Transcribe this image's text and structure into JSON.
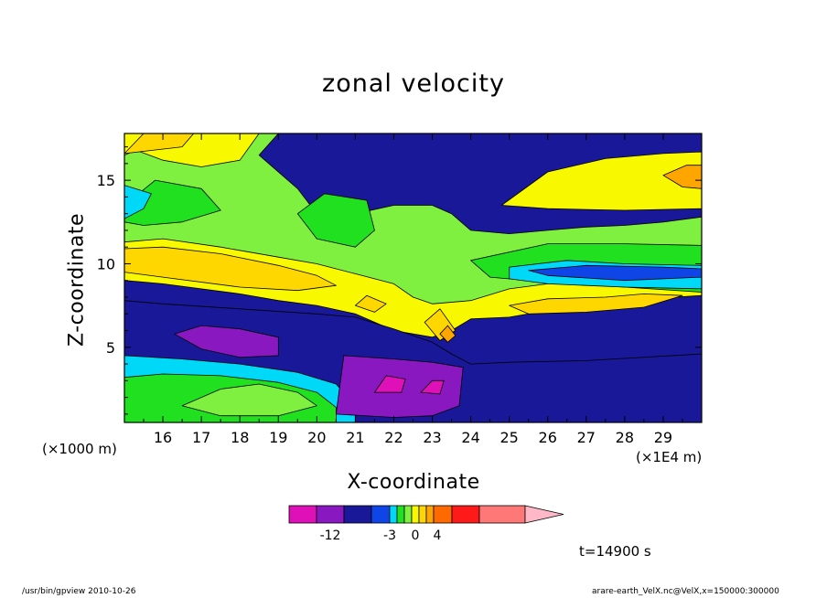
{
  "chart_data": {
    "type": "heatmap",
    "title": "zonal velocity",
    "xlabel": "X-coordinate",
    "ylabel": "Z-coordinate",
    "x_unit_left": "(×1000 m)",
    "x_unit_right": "(×1E4 m)",
    "xlim": [
      15.0,
      30.0
    ],
    "ylim": [
      0.5,
      17.8
    ],
    "x_ticks": [
      16,
      17,
      18,
      19,
      20,
      21,
      22,
      23,
      24,
      25,
      26,
      27,
      28,
      29
    ],
    "y_ticks": [
      5,
      10,
      15
    ],
    "time_label": "t=14900 s",
    "colorbar": {
      "colors": [
        "#e010b8",
        "#8a18c0",
        "#181898",
        "#0f45e6",
        "#00d8f8",
        "#20e020",
        "#80f040",
        "#f8f800",
        "#ffd700",
        "#ffa500",
        "#ff6a00",
        "#ff1a1a",
        "#ff7878"
      ],
      "extend_color": "#ffb8c8",
      "labels": [
        "-12",
        "-3",
        "0",
        "4"
      ]
    },
    "bands_note": "filled contour regions of zonal velocity",
    "regions": [
      {
        "level": 2,
        "pts": [
          [
            15,
            0.5
          ],
          [
            30,
            0.5
          ],
          [
            30,
            17.8
          ],
          [
            15,
            17.8
          ]
        ]
      },
      {
        "level": 6,
        "pts": [
          [
            15,
            17.8
          ],
          [
            19,
            17.8
          ],
          [
            18.5,
            16.5
          ],
          [
            19.5,
            14.5
          ],
          [
            20,
            13
          ],
          [
            21,
            13
          ],
          [
            22,
            13.5
          ],
          [
            23,
            13.5
          ],
          [
            23.5,
            13
          ],
          [
            24,
            12
          ],
          [
            25,
            11.8
          ],
          [
            26,
            12
          ],
          [
            27,
            12.2
          ],
          [
            28,
            12.3
          ],
          [
            29,
            12.5
          ],
          [
            30,
            12.8
          ],
          [
            30,
            8.6
          ],
          [
            27,
            8.2
          ],
          [
            25,
            7.6
          ],
          [
            24,
            7.3
          ],
          [
            23,
            7.5
          ],
          [
            22,
            8.2
          ],
          [
            21,
            8.6
          ],
          [
            20,
            8.7
          ],
          [
            19,
            9.1
          ],
          [
            18,
            9.5
          ],
          [
            17,
            10
          ],
          [
            16,
            10.3
          ],
          [
            15,
            10.5
          ]
        ]
      },
      {
        "level": 7,
        "pts": [
          [
            15,
            17.8
          ],
          [
            18.5,
            17.8
          ],
          [
            18,
            16.2
          ],
          [
            17,
            15.8
          ],
          [
            16,
            16.2
          ],
          [
            15.3,
            16.8
          ],
          [
            15,
            16.5
          ]
        ]
      },
      {
        "level": 7,
        "pts": [
          [
            24.8,
            13.5
          ],
          [
            26,
            15.5
          ],
          [
            27.5,
            16.3
          ],
          [
            29,
            16.6
          ],
          [
            30,
            16.7
          ],
          [
            30,
            13.3
          ],
          [
            28,
            13.2
          ],
          [
            26,
            13.3
          ]
        ]
      },
      {
        "level": 7,
        "pts": [
          [
            15,
            11.3
          ],
          [
            16,
            11.5
          ],
          [
            17.5,
            11
          ],
          [
            19,
            10.4
          ],
          [
            20,
            10
          ],
          [
            21,
            9.4
          ],
          [
            22,
            8.8
          ],
          [
            22.5,
            8
          ],
          [
            23,
            7.6
          ],
          [
            24,
            7.8
          ],
          [
            25,
            8.5
          ],
          [
            27,
            9.1
          ],
          [
            29,
            9.3
          ],
          [
            30,
            9.4
          ],
          [
            30,
            8.1
          ],
          [
            28,
            7.8
          ],
          [
            26,
            7.2
          ],
          [
            25,
            6.8
          ],
          [
            24,
            6.7
          ],
          [
            23.5,
            6
          ],
          [
            23,
            5.6
          ],
          [
            22,
            6
          ],
          [
            21,
            7
          ],
          [
            20,
            7.5
          ],
          [
            19,
            7.8
          ],
          [
            18,
            8.2
          ],
          [
            17,
            8.5
          ],
          [
            16,
            8.8
          ],
          [
            15,
            9
          ]
        ]
      },
      {
        "level": 8,
        "pts": [
          [
            15,
            10.9
          ],
          [
            16,
            11
          ],
          [
            17.5,
            10.6
          ],
          [
            19,
            9.9
          ],
          [
            20,
            9.3
          ],
          [
            20.5,
            8.7
          ],
          [
            19.5,
            8.4
          ],
          [
            18,
            8.6
          ],
          [
            16,
            9.2
          ],
          [
            15,
            9.5
          ]
        ]
      },
      {
        "level": 8,
        "pts": [
          [
            25,
            7.5
          ],
          [
            26,
            7.9
          ],
          [
            27.5,
            8
          ],
          [
            28.5,
            8.2
          ],
          [
            29.5,
            8.1
          ],
          [
            28.5,
            7.4
          ],
          [
            27,
            7.1
          ],
          [
            25.5,
            7
          ]
        ]
      },
      {
        "level": 5,
        "pts": [
          [
            19.5,
            13
          ],
          [
            20.2,
            14.2
          ],
          [
            21.3,
            13.8
          ],
          [
            21.5,
            12
          ],
          [
            21,
            11
          ],
          [
            20,
            11.5
          ]
        ]
      },
      {
        "level": 5,
        "pts": [
          [
            15,
            13.5
          ],
          [
            15.8,
            15
          ],
          [
            17,
            14.5
          ],
          [
            17.5,
            13.2
          ],
          [
            16.5,
            12.5
          ],
          [
            15.5,
            12.3
          ],
          [
            15,
            12.5
          ]
        ]
      },
      {
        "level": 4,
        "pts": [
          [
            15,
            12.7
          ],
          [
            15.5,
            13.3
          ],
          [
            15.7,
            14.2
          ],
          [
            15,
            14.7
          ]
        ]
      },
      {
        "level": 5,
        "pts": [
          [
            24,
            10.2
          ],
          [
            26,
            11.2
          ],
          [
            28,
            11.2
          ],
          [
            30,
            11.1
          ],
          [
            30,
            8.3
          ],
          [
            28,
            8.6
          ],
          [
            26,
            8.9
          ],
          [
            24.5,
            9.2
          ]
        ]
      },
      {
        "level": 4,
        "pts": [
          [
            25,
            9.8
          ],
          [
            26.5,
            10.2
          ],
          [
            28,
            10
          ],
          [
            30,
            9.9
          ],
          [
            30,
            8.5
          ],
          [
            28,
            8.6
          ],
          [
            26,
            8.8
          ],
          [
            25,
            9.1
          ]
        ]
      },
      {
        "level": 3,
        "pts": [
          [
            25.5,
            9.6
          ],
          [
            27,
            9.9
          ],
          [
            29,
            9.8
          ],
          [
            30,
            9.7
          ],
          [
            30,
            9.2
          ],
          [
            28,
            9
          ],
          [
            26,
            9.3
          ]
        ]
      },
      {
        "level": 2,
        "pts": [
          [
            15,
            0.5
          ],
          [
            15,
            7.8
          ],
          [
            16,
            7.6
          ],
          [
            18,
            7.3
          ],
          [
            20,
            7
          ],
          [
            21,
            6.8
          ],
          [
            22,
            6.1
          ],
          [
            23,
            5.3
          ],
          [
            23.5,
            4.6
          ],
          [
            24,
            4
          ],
          [
            25,
            4.1
          ],
          [
            27,
            4.2
          ],
          [
            30,
            4.6
          ],
          [
            30,
            0.5
          ]
        ]
      },
      {
        "level": 4,
        "pts": [
          [
            15,
            0.5
          ],
          [
            15,
            4.5
          ],
          [
            16.5,
            4.3
          ],
          [
            18,
            4
          ],
          [
            19.5,
            3.5
          ],
          [
            20.5,
            2.8
          ],
          [
            21,
            1.5
          ],
          [
            21,
            0.5
          ]
        ]
      },
      {
        "level": 5,
        "pts": [
          [
            15,
            0.5
          ],
          [
            15,
            3.2
          ],
          [
            16,
            3.4
          ],
          [
            17.5,
            3.3
          ],
          [
            19,
            2.9
          ],
          [
            20,
            2.3
          ],
          [
            20.5,
            1.4
          ],
          [
            20.5,
            0.5
          ]
        ]
      },
      {
        "level": 6,
        "pts": [
          [
            16.5,
            1.5
          ],
          [
            17.5,
            2.5
          ],
          [
            18.5,
            2.8
          ],
          [
            19.5,
            2.3
          ],
          [
            20,
            1.5
          ],
          [
            19,
            0.9
          ],
          [
            17.5,
            0.9
          ]
        ]
      },
      {
        "level": 1,
        "pts": [
          [
            16.3,
            5.8
          ],
          [
            17,
            6.3
          ],
          [
            18,
            6.1
          ],
          [
            19,
            5.6
          ],
          [
            19,
            4.5
          ],
          [
            18,
            4.4
          ],
          [
            17,
            4.9
          ]
        ]
      },
      {
        "level": 1,
        "pts": [
          [
            20.5,
            1
          ],
          [
            20.7,
            4.5
          ],
          [
            22,
            4.3
          ],
          [
            23,
            4.1
          ],
          [
            23.8,
            3.8
          ],
          [
            23.7,
            1.5
          ],
          [
            23,
            0.9
          ],
          [
            22,
            0.8
          ]
        ]
      },
      {
        "level": 0,
        "pts": [
          [
            21.5,
            2.3
          ],
          [
            21.8,
            3.3
          ],
          [
            22.3,
            3.1
          ],
          [
            22.2,
            2.3
          ]
        ]
      },
      {
        "level": 0,
        "pts": [
          [
            22.7,
            2.3
          ],
          [
            23,
            3
          ],
          [
            23.3,
            3
          ],
          [
            23.2,
            2.2
          ]
        ]
      },
      {
        "level": 8,
        "pts": [
          [
            21,
            7.5
          ],
          [
            21.3,
            8.1
          ],
          [
            21.8,
            7.6
          ],
          [
            21.5,
            7.1
          ]
        ]
      },
      {
        "level": 8,
        "pts": [
          [
            22.8,
            6.5
          ],
          [
            23.2,
            7.3
          ],
          [
            23.6,
            6
          ],
          [
            23.2,
            5.4
          ]
        ]
      },
      {
        "level": 9,
        "pts": [
          [
            23.2,
            5.8
          ],
          [
            23.4,
            6.3
          ],
          [
            23.6,
            5.7
          ],
          [
            23.4,
            5.3
          ]
        ]
      },
      {
        "level": 9,
        "pts": [
          [
            29,
            15.3
          ],
          [
            29.6,
            15.9
          ],
          [
            30,
            15.9
          ],
          [
            30,
            14.5
          ],
          [
            29.5,
            14.6
          ]
        ]
      },
      {
        "level": 8,
        "pts": [
          [
            15,
            16.6
          ],
          [
            15.5,
            17.8
          ],
          [
            16.8,
            17.8
          ],
          [
            16.5,
            17
          ]
        ]
      }
    ]
  }
}
